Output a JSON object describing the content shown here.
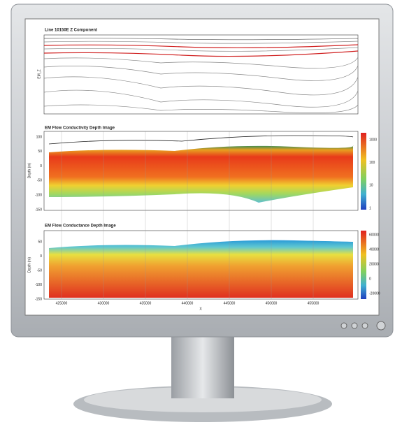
{
  "panels": [
    {
      "title": "Line 10150E  Z Component",
      "y_label": "EM_Z"
    },
    {
      "title": "EM Flow Conductivity Depth Image",
      "y_label": "Depth (m)",
      "y_ticks": [
        "100",
        "50",
        "0",
        "-50",
        "-100",
        "-150"
      ],
      "colorbar_ticks": [
        "1000",
        "100",
        "10",
        "1"
      ]
    },
    {
      "title": "EM Flow Conductance Depth Image",
      "y_label": "Depth (m)",
      "y_ticks": [
        "50",
        "0",
        "-50",
        "-100",
        "-150"
      ],
      "colorbar_ticks": [
        "60000",
        "40000",
        "20000",
        "0",
        "-20000"
      ],
      "x_ticks": [
        "425000",
        "430000",
        "435000",
        "440000",
        "445000",
        "450000",
        "455000"
      ],
      "x_label": "X"
    }
  ]
}
